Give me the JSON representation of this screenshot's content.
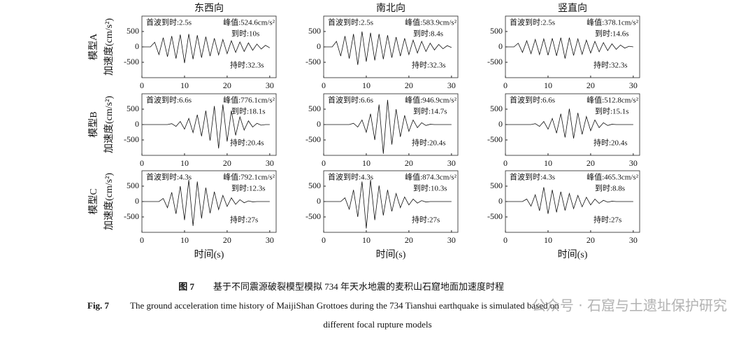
{
  "chart_data": [
    {
      "type": "line",
      "title": "东西向",
      "row_label": "模型A",
      "ylabel": "加速度(cm/s²)",
      "color": "#111",
      "xlim": [
        0,
        31.5
      ],
      "ylim": [
        -1000,
        1000
      ],
      "xticks": [
        0,
        10,
        20,
        30
      ],
      "yticks": [
        -500,
        0,
        500
      ],
      "annotations": [
        "首波到时:2.5s",
        "峰值:524.6cm/s²",
        "到时:10s",
        "持时:32.3s"
      ],
      "x": [
        0,
        1,
        2,
        3,
        4,
        5,
        6,
        7,
        8,
        9,
        10,
        11,
        12,
        13,
        14,
        15,
        16,
        17,
        18,
        19,
        20,
        21,
        22,
        23,
        24,
        25,
        26,
        27,
        28,
        29,
        30
      ],
      "values": [
        0,
        0,
        0,
        150,
        -250,
        300,
        -320,
        350,
        -380,
        400,
        -524,
        420,
        -400,
        380,
        -350,
        330,
        -300,
        280,
        -260,
        240,
        -220,
        200,
        -180,
        160,
        -150,
        130,
        -110,
        90,
        -70,
        50,
        -30
      ]
    },
    {
      "type": "line",
      "title": "南北向",
      "color": "#111",
      "xlim": [
        0,
        31.5
      ],
      "ylim": [
        -1000,
        1000
      ],
      "xticks": [
        0,
        10,
        20,
        30
      ],
      "yticks": [
        -500,
        0,
        500
      ],
      "annotations": [
        "首波到时:2.5s",
        "峰值:583.9cm/s²",
        "到时:8.4s",
        "持时:32.3s"
      ],
      "x": [
        0,
        1,
        2,
        3,
        4,
        5,
        6,
        7,
        8,
        9,
        10,
        11,
        12,
        13,
        14,
        15,
        16,
        17,
        18,
        19,
        20,
        21,
        22,
        23,
        24,
        25,
        26,
        27,
        28,
        29,
        30
      ],
      "values": [
        0,
        0,
        0,
        180,
        -300,
        350,
        -380,
        420,
        -584,
        500,
        -480,
        460,
        -440,
        420,
        -400,
        380,
        -350,
        320,
        -300,
        280,
        -250,
        220,
        -200,
        180,
        -150,
        120,
        -100,
        80,
        -60,
        40,
        -20
      ]
    },
    {
      "type": "line",
      "title": "竖直向",
      "color": "#111",
      "xlim": [
        0,
        31.5
      ],
      "ylim": [
        -1000,
        1000
      ],
      "xticks": [
        0,
        10,
        20,
        30
      ],
      "yticks": [
        -500,
        0,
        500
      ],
      "annotations": [
        "首波到时:2.5s",
        "峰值:378.1cm/s²",
        "到时:14.6s",
        "持时:32.3s"
      ],
      "x": [
        0,
        1,
        2,
        3,
        4,
        5,
        6,
        7,
        8,
        9,
        10,
        11,
        12,
        13,
        14,
        15,
        16,
        17,
        18,
        19,
        20,
        21,
        22,
        23,
        24,
        25,
        26,
        27,
        28,
        29,
        30
      ],
      "values": [
        0,
        0,
        0,
        120,
        -180,
        200,
        -220,
        240,
        -250,
        260,
        -270,
        280,
        -290,
        300,
        -378,
        300,
        -280,
        260,
        -240,
        220,
        -200,
        180,
        -160,
        140,
        -120,
        100,
        -80,
        60,
        -40,
        20,
        0
      ]
    },
    {
      "type": "line",
      "row_label": "模型B",
      "ylabel": "加速度(cm/s²)",
      "color": "#111",
      "xlim": [
        0,
        31.5
      ],
      "ylim": [
        -1000,
        1000
      ],
      "xticks": [
        0,
        10,
        20,
        30
      ],
      "yticks": [
        -500,
        0,
        500
      ],
      "annotations": [
        "首波到时:6.6s",
        "峰值:776.1cm/s²",
        "到时:18.1s",
        "持时:20.4s"
      ],
      "x": [
        0,
        1,
        2,
        3,
        4,
        5,
        6,
        7,
        8,
        9,
        10,
        11,
        12,
        13,
        14,
        15,
        16,
        17,
        18,
        19,
        20,
        21,
        22,
        23,
        24,
        25,
        26,
        27,
        28,
        29,
        30
      ],
      "values": [
        0,
        0,
        0,
        0,
        0,
        0,
        0,
        30,
        -60,
        100,
        -150,
        200,
        -260,
        320,
        -380,
        450,
        -520,
        600,
        -776,
        650,
        -550,
        450,
        -350,
        250,
        -180,
        120,
        -80,
        40,
        -20,
        0,
        0
      ]
    },
    {
      "type": "line",
      "color": "#111",
      "xlim": [
        0,
        31.5
      ],
      "ylim": [
        -1000,
        1000
      ],
      "xticks": [
        0,
        10,
        20,
        30
      ],
      "yticks": [
        -500,
        0,
        500
      ],
      "annotations": [
        "首波到时:6.6s",
        "峰值:946.9cm/s²",
        "到时:14.7s",
        "持时:20.4s"
      ],
      "x": [
        0,
        1,
        2,
        3,
        4,
        5,
        6,
        7,
        8,
        9,
        10,
        11,
        12,
        13,
        14,
        15,
        16,
        17,
        18,
        19,
        20,
        21,
        22,
        23,
        24,
        25,
        26,
        27,
        28,
        29,
        30
      ],
      "values": [
        0,
        0,
        0,
        0,
        0,
        0,
        0,
        40,
        -80,
        150,
        -250,
        350,
        -500,
        650,
        -947,
        800,
        -650,
        500,
        -400,
        300,
        -220,
        150,
        -100,
        60,
        -30,
        10,
        0,
        0,
        0,
        0,
        0
      ]
    },
    {
      "type": "line",
      "color": "#111",
      "xlim": [
        0,
        31.5
      ],
      "ylim": [
        -1000,
        1000
      ],
      "xticks": [
        0,
        10,
        20,
        30
      ],
      "yticks": [
        -500,
        0,
        500
      ],
      "annotations": [
        "首波到时:6.6s",
        "峰值:512.8cm/s²",
        "到时:15.1s",
        "持时:20.4s"
      ],
      "x": [
        0,
        1,
        2,
        3,
        4,
        5,
        6,
        7,
        8,
        9,
        10,
        11,
        12,
        13,
        14,
        15,
        16,
        17,
        18,
        19,
        20,
        21,
        22,
        23,
        24,
        25,
        26,
        27,
        28,
        29,
        30
      ],
      "values": [
        0,
        0,
        0,
        0,
        0,
        0,
        0,
        30,
        -60,
        100,
        -150,
        200,
        -280,
        350,
        -420,
        512,
        -450,
        380,
        -320,
        260,
        -200,
        150,
        -100,
        60,
        -30,
        10,
        0,
        0,
        0,
        0,
        0
      ]
    },
    {
      "type": "line",
      "row_label": "模型C",
      "ylabel": "加速度(cm/s²)",
      "xlabel": "时间(s)",
      "color": "#111",
      "xlim": [
        0,
        31.5
      ],
      "ylim": [
        -1000,
        1000
      ],
      "xticks": [
        0,
        10,
        20,
        30
      ],
      "yticks": [
        -500,
        0,
        500
      ],
      "annotations": [
        "首波到时:4.3s",
        "峰值:792.1cm/s²",
        "到时:12.3s",
        "持时:27s"
      ],
      "x": [
        0,
        1,
        2,
        3,
        4,
        5,
        6,
        7,
        8,
        9,
        10,
        11,
        12,
        13,
        14,
        15,
        16,
        17,
        18,
        19,
        20,
        21,
        22,
        23,
        24,
        25,
        26,
        27,
        28,
        29,
        30
      ],
      "values": [
        0,
        0,
        0,
        0,
        0,
        100,
        -200,
        300,
        -400,
        500,
        -600,
        700,
        -792,
        650,
        -550,
        450,
        -380,
        320,
        -260,
        200,
        -160,
        120,
        -90,
        60,
        -40,
        20,
        -10,
        0,
        0,
        0,
        0
      ]
    },
    {
      "type": "line",
      "xlabel": "时间(s)",
      "color": "#111",
      "xlim": [
        0,
        31.5
      ],
      "ylim": [
        -1000,
        1000
      ],
      "xticks": [
        0,
        10,
        20,
        30
      ],
      "yticks": [
        -500,
        0,
        500
      ],
      "annotations": [
        "首波到时:4.3s",
        "峰值:874.3cm/s²",
        "到时:10.3s",
        "持时:27s"
      ],
      "x": [
        0,
        1,
        2,
        3,
        4,
        5,
        6,
        7,
        8,
        9,
        10,
        11,
        12,
        13,
        14,
        15,
        16,
        17,
        18,
        19,
        20,
        21,
        22,
        23,
        24,
        25,
        26,
        27,
        28,
        29,
        30
      ],
      "values": [
        0,
        0,
        0,
        0,
        0,
        120,
        -250,
        380,
        -500,
        650,
        -874,
        700,
        -600,
        520,
        -450,
        380,
        -320,
        260,
        -200,
        150,
        -110,
        80,
        -50,
        30,
        -15,
        0,
        0,
        0,
        0,
        0,
        0
      ]
    },
    {
      "type": "line",
      "xlabel": "时间(s)",
      "color": "#111",
      "xlim": [
        0,
        31.5
      ],
      "ylim": [
        -1000,
        1000
      ],
      "xticks": [
        0,
        10,
        20,
        30
      ],
      "yticks": [
        -500,
        0,
        500
      ],
      "annotations": [
        "首波到时:4.3s",
        "峰值:465.3cm/s²",
        "到时:8.8s",
        "持时:27s"
      ],
      "x": [
        0,
        1,
        2,
        3,
        4,
        5,
        6,
        7,
        8,
        9,
        10,
        11,
        12,
        13,
        14,
        15,
        16,
        17,
        18,
        19,
        20,
        21,
        22,
        23,
        24,
        25,
        26,
        27,
        28,
        29,
        30
      ],
      "values": [
        0,
        0,
        0,
        0,
        0,
        80,
        -150,
        220,
        -300,
        465,
        -400,
        380,
        -350,
        320,
        -290,
        260,
        -230,
        200,
        -170,
        140,
        -110,
        80,
        -60,
        40,
        -20,
        10,
        0,
        0,
        0,
        0,
        0
      ]
    }
  ],
  "caption": {
    "cn_label": "图 7",
    "cn": "基于不同震源破裂模型模拟 734 年天水地震的麦积山石窟地面加速度时程",
    "en_label": "Fig. 7",
    "en_1": "The ground acceleration time history of MaijiShan Grottoes during the 734 Tianshui earthquake is simulated based on",
    "en_2": "different focal rupture models"
  },
  "watermark": "公众号 · 石窟与土遗址保护研究"
}
